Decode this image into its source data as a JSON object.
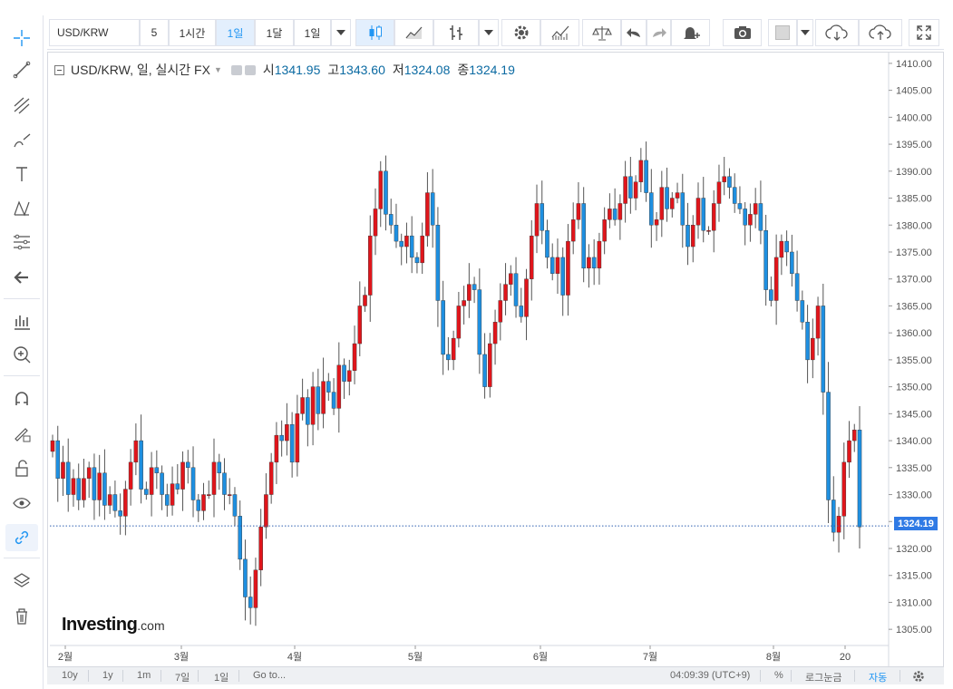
{
  "toolbar": {
    "symbol": "USD/KRW",
    "intervals": [
      "5",
      "1시간",
      "1일",
      "1달",
      "1일"
    ],
    "active_interval": "1일"
  },
  "legend": {
    "title": "USD/KRW, 일, 실시간 FX",
    "open_label": "시",
    "open": "1341.95",
    "high_label": "고",
    "high": "1343.60",
    "low_label": "저",
    "low": "1324.08",
    "close_label": "종",
    "close": "1324.19"
  },
  "logo": {
    "main": "Investing",
    "suffix": ".com"
  },
  "price_tag": "1324.19",
  "bottombar": {
    "ranges": [
      "10y",
      "1y",
      "1m",
      "7일",
      "1일"
    ],
    "goto": "Go to...",
    "time": "04:09:39 (UTC+9)",
    "percent": "%",
    "log": "로그눈금",
    "auto": "자동"
  },
  "colors": {
    "up": "#e0151b",
    "down": "#1e8fe0",
    "accent": "#2f7ae5"
  },
  "icons": {
    "sidebar": [
      "crosshair-icon",
      "trendline-icon",
      "fork-icon",
      "brush-icon",
      "text-icon",
      "pattern-icon",
      "fib-icon",
      "back-arrow-icon",
      "measure-icon",
      "zoom-icon",
      "magnet-icon",
      "lock-drawing-icon",
      "unlock-icon",
      "eye-icon",
      "link-icon",
      "layers-icon",
      "trash-icon"
    ]
  },
  "chart_data": {
    "type": "candlestick",
    "title": "USD/KRW, 일, 실시간 FX",
    "ylim": [
      1302,
      1412
    ],
    "y_ticks": [
      "1410.00",
      "1405.00",
      "1400.00",
      "1395.00",
      "1390.00",
      "1385.00",
      "1380.00",
      "1375.00",
      "1370.00",
      "1365.00",
      "1360.00",
      "1355.00",
      "1350.00",
      "1345.00",
      "1340.00",
      "1335.00",
      "1330.00",
      "1325.00",
      "1320.00",
      "1315.00",
      "1310.00",
      "1305.00"
    ],
    "x_ticks": [
      "2월",
      "3월",
      "4월",
      "5월",
      "6월",
      "7월",
      "8월",
      "20"
    ],
    "last_close": 1324.19,
    "close_series": [
      1340,
      1333,
      1336,
      1330,
      1333,
      1329,
      1333,
      1335,
      1329,
      1334,
      1328,
      1330,
      1327,
      1326,
      1331,
      1336,
      1340,
      1331,
      1330,
      1335,
      1334,
      1330,
      1328,
      1332,
      1331,
      1336,
      1335,
      1329,
      1327,
      1330,
      1330,
      1336,
      1334,
      1330,
      1330,
      1326,
      1318,
      1311,
      1309,
      1316,
      1324,
      1330,
      1336,
      1341,
      1340,
      1343,
      1336,
      1345,
      1348,
      1343,
      1350,
      1345,
      1351,
      1349,
      1346,
      1354,
      1351,
      1353,
      1358,
      1365,
      1367,
      1378,
      1383,
      1390,
      1382,
      1380,
      1377,
      1376,
      1378,
      1374,
      1373,
      1378,
      1386,
      1380,
      1366,
      1356,
      1355,
      1359,
      1365,
      1366,
      1369,
      1368,
      1356,
      1350,
      1358,
      1362,
      1366,
      1369,
      1371,
      1365,
      1363,
      1370,
      1378,
      1384,
      1379,
      1374,
      1371,
      1374,
      1367,
      1377,
      1381,
      1384,
      1372,
      1374,
      1372,
      1377,
      1381,
      1383,
      1381,
      1384,
      1389,
      1385,
      1388,
      1392,
      1386,
      1380,
      1381,
      1387,
      1383,
      1385,
      1386,
      1380,
      1376,
      1380,
      1385,
      1379,
      1379,
      1384,
      1388,
      1389,
      1387,
      1384,
      1383,
      1380,
      1382,
      1384,
      1379,
      1368,
      1366,
      1374,
      1377,
      1375,
      1371,
      1366,
      1362,
      1355,
      1359,
      1365,
      1349,
      1329,
      1323,
      1326,
      1336,
      1340,
      1342,
      1324
    ]
  }
}
